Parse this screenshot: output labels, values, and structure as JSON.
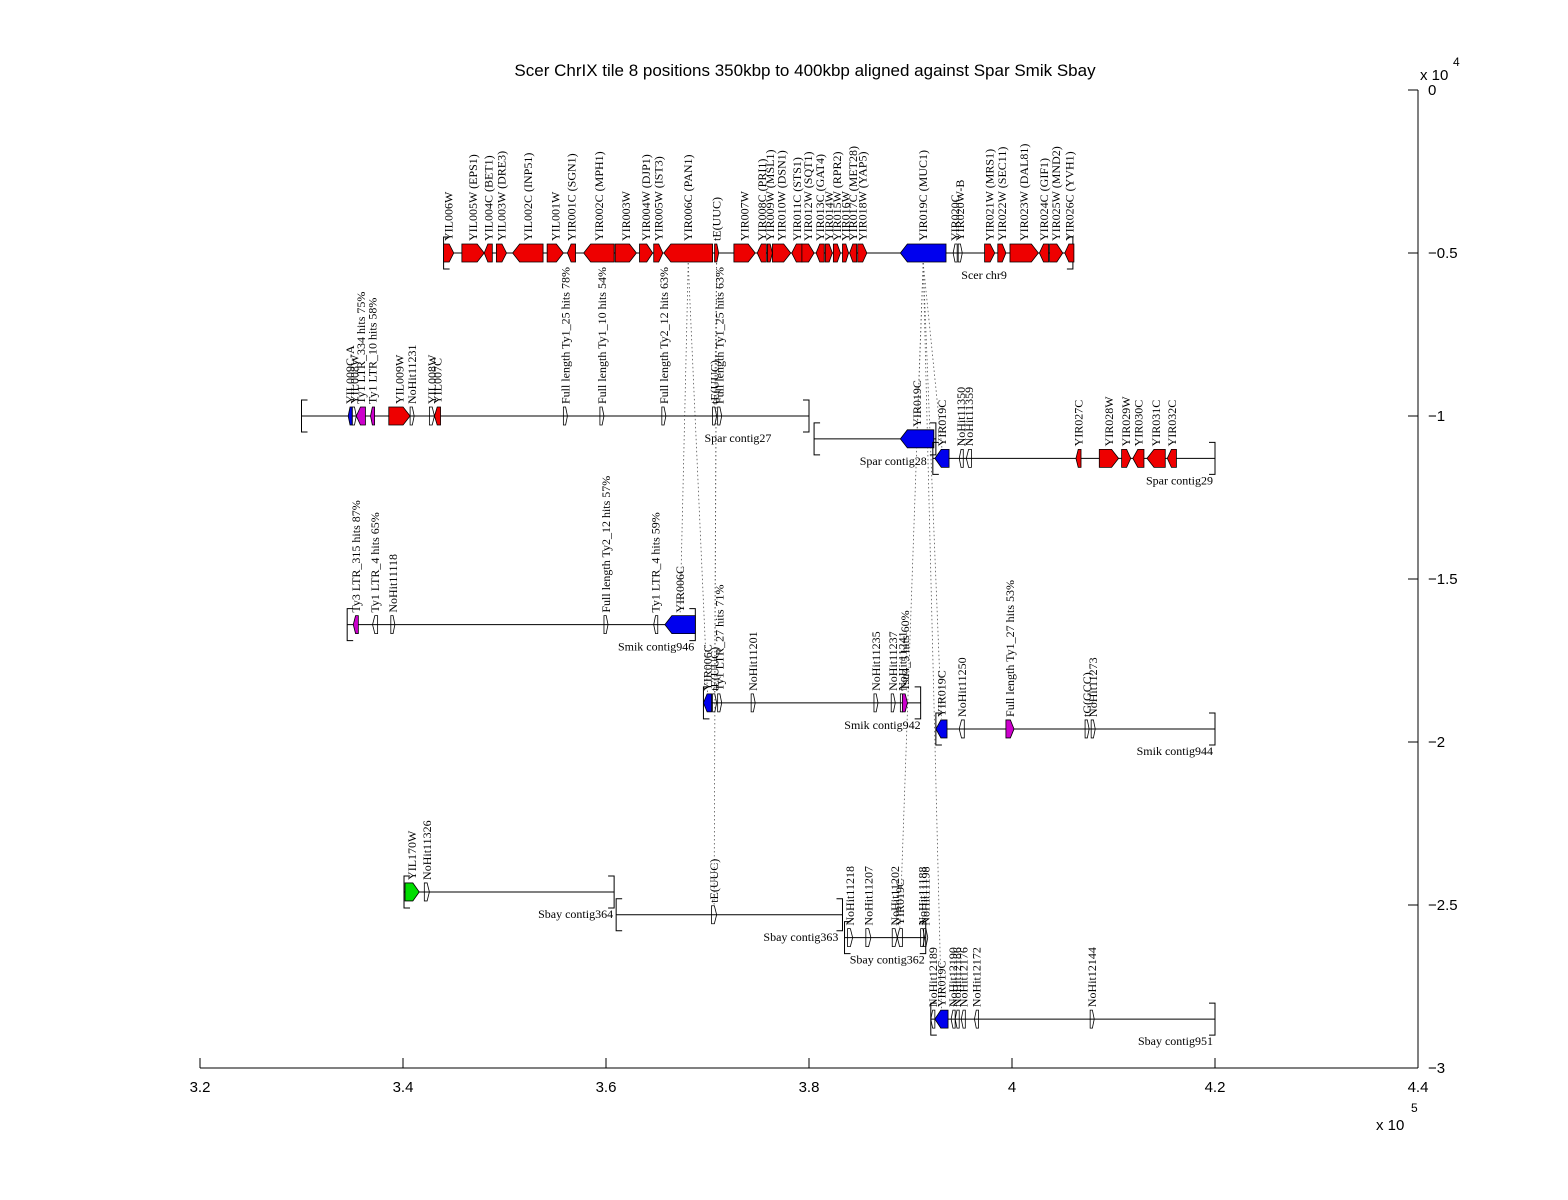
{
  "title": "Scer ChrIX tile 8 positions 350kbp to 400kbp aligned against Spar Smik Sbay",
  "colors": {
    "red": "#ee0000",
    "blue": "#0000ee",
    "magenta": "#cc00cc",
    "green": "#00dd00",
    "black": "#000000"
  },
  "x_axis": {
    "ticks": [
      3.2,
      3.4,
      3.6,
      3.8,
      4,
      4.2,
      4.4
    ],
    "tick_labels": [
      "3.2",
      "3.4",
      "3.6",
      "3.8",
      "4",
      "4.2",
      "4.4"
    ],
    "multiplier": "x 10",
    "exponent": "5",
    "range": [
      320000,
      440000
    ]
  },
  "y_axis": {
    "ticks": [
      0,
      -0.5,
      -1,
      -1.5,
      -2,
      -2.5,
      -3
    ],
    "tick_labels": [
      "0",
      "−0.5",
      "−1",
      "−1.5",
      "−2",
      "−2.5",
      "−3"
    ],
    "multiplier": "x 10",
    "exponent": "4",
    "range": [
      -30000,
      0
    ]
  },
  "chart_data": {
    "type": "genome-alignment",
    "contigs": [
      {
        "name": "Scer chr9",
        "y": -5000,
        "x_start": 344000,
        "x_end": 406000,
        "label_at": 399500,
        "genes": [
          {
            "label": "YIL006W",
            "start": 344000,
            "end": 345000,
            "strand": "+",
            "color": "red"
          },
          {
            "label": "YIL005W (EPS1)",
            "start": 345800,
            "end": 348000,
            "strand": "+",
            "color": "red"
          },
          {
            "label": "YIL004C (BET1)",
            "start": 348000,
            "end": 348800,
            "strand": "-",
            "color": "red"
          },
          {
            "label": "YIL003W (DRE3)",
            "start": 349200,
            "end": 350200,
            "strand": "+",
            "color": "red"
          },
          {
            "label": "YIL002C (INP51)",
            "start": 350800,
            "end": 353800,
            "strand": "-",
            "color": "red"
          },
          {
            "label": "YIL001W",
            "start": 354200,
            "end": 355800,
            "strand": "+",
            "color": "red"
          },
          {
            "label": "YIR001C (SGN1)",
            "start": 356200,
            "end": 357000,
            "strand": "-",
            "color": "red"
          },
          {
            "label": "YIR002C (MPH1)",
            "start": 357800,
            "end": 360800,
            "strand": "-",
            "color": "red"
          },
          {
            "label": "YIR003W",
            "start": 360900,
            "end": 363000,
            "strand": "+",
            "color": "red"
          },
          {
            "label": "YIR004W (DJP1)",
            "start": 363300,
            "end": 364600,
            "strand": "+",
            "color": "red"
          },
          {
            "label": "YIR005W (IST3)",
            "start": 364700,
            "end": 365600,
            "strand": "+",
            "color": "red"
          },
          {
            "label": "YIR006C (PAN1)",
            "start": 365700,
            "end": 370500,
            "strand": "-",
            "color": "red"
          },
          {
            "label": "tE(UUC)",
            "start": 370700,
            "end": 371100,
            "strand": "+",
            "color": "red"
          },
          {
            "label": "YIR007W",
            "start": 372600,
            "end": 374700,
            "strand": "+",
            "color": "red"
          },
          {
            "label": "YIR008C (PRI1)",
            "start": 374900,
            "end": 375800,
            "strand": "-",
            "color": "red"
          },
          {
            "label": "YIR009W (MSL1)",
            "start": 375900,
            "end": 376400,
            "strand": "+",
            "color": "red"
          },
          {
            "label": "YIR010W (DSN1)",
            "start": 376400,
            "end": 378200,
            "strand": "+",
            "color": "red"
          },
          {
            "label": "YIR011C (STS1)",
            "start": 378300,
            "end": 379300,
            "strand": "-",
            "color": "red"
          },
          {
            "label": "YIR012W (SQT1)",
            "start": 379300,
            "end": 380500,
            "strand": "+",
            "color": "red"
          },
          {
            "label": "YIR013C (GAT4)",
            "start": 380700,
            "end": 381500,
            "strand": "-",
            "color": "red"
          },
          {
            "label": "YIR014W",
            "start": 381600,
            "end": 382300,
            "strand": "+",
            "color": "red"
          },
          {
            "label": "YIR015W (RPR2)",
            "start": 382400,
            "end": 383100,
            "strand": "+",
            "color": "red"
          },
          {
            "label": "YIR016W",
            "start": 383300,
            "end": 383900,
            "strand": "+",
            "color": "red"
          },
          {
            "label": "YIR017C (MET28)",
            "start": 384000,
            "end": 384700,
            "strand": "-",
            "color": "red"
          },
          {
            "label": "YIR018W (YAP5)",
            "start": 384800,
            "end": 385700,
            "strand": "+",
            "color": "red"
          },
          {
            "label": "YIR019C (MUC1)",
            "start": 389000,
            "end": 393500,
            "strand": "-",
            "color": "blue"
          },
          {
            "label": "YIR020C",
            "start": 394200,
            "end": 394600,
            "strand": "-",
            "color": "black"
          },
          {
            "label": "YIR020W-B",
            "start": 394700,
            "end": 395100,
            "strand": "+",
            "color": "black"
          },
          {
            "label": "YIR021W (MRS1)",
            "start": 397300,
            "end": 398300,
            "strand": "+",
            "color": "red"
          },
          {
            "label": "YIR022W (SEC11)",
            "start": 398600,
            "end": 399400,
            "strand": "+",
            "color": "red"
          },
          {
            "label": "YIR023W (DAL81)",
            "start": 399800,
            "end": 402600,
            "strand": "+",
            "color": "red"
          },
          {
            "label": "YIR024C (GIF1)",
            "start": 402700,
            "end": 403600,
            "strand": "-",
            "color": "red"
          },
          {
            "label": "YIR025W (MND2)",
            "start": 403700,
            "end": 405000,
            "strand": "+",
            "color": "red"
          },
          {
            "label": "YIR026C (YVH1)",
            "start": 405200,
            "end": 406100,
            "strand": "-",
            "color": "red"
          }
        ]
      },
      {
        "name": "Spar contig27",
        "y": -10000,
        "x_start": 330000,
        "x_end": 380000,
        "label_at": 376300,
        "genes": [
          {
            "label": "YIL009C-A",
            "start": 334600,
            "end": 335000,
            "strand": "-",
            "color": "blue"
          },
          {
            "label": "YIL008W",
            "start": 335000,
            "end": 335400,
            "strand": "+",
            "color": "black"
          },
          {
            "label": "Ty1 LTR_334 hits 75%",
            "start": 335400,
            "end": 336300,
            "strand": "-",
            "color": "magenta"
          },
          {
            "label": "Ty1 LTR_10 hits 58%",
            "start": 336800,
            "end": 337200,
            "strand": "-",
            "color": "magenta"
          },
          {
            "label": "YIL009W",
            "start": 338600,
            "end": 340700,
            "strand": "+",
            "color": "red"
          },
          {
            "label": "NoHit11231",
            "start": 340700,
            "end": 341100,
            "strand": "+",
            "color": "black"
          },
          {
            "label": "YIL008W",
            "start": 342600,
            "end": 343100,
            "strand": "+",
            "color": "black"
          },
          {
            "label": "YIL007C",
            "start": 343100,
            "end": 343700,
            "strand": "-",
            "color": "red"
          },
          {
            "label": "Full length Ty1_25 hits 78%",
            "start": 355800,
            "end": 356200,
            "strand": "+",
            "color": "black"
          },
          {
            "label": "Full length Ty1_10 hits 54%",
            "start": 359400,
            "end": 359800,
            "strand": "+",
            "color": "black"
          },
          {
            "label": "Full length Ty2_12 hits 63%",
            "start": 365500,
            "end": 365900,
            "strand": "+",
            "color": "black"
          },
          {
            "label": "tE(UUC)",
            "start": 370500,
            "end": 370900,
            "strand": "+",
            "color": "black"
          },
          {
            "label": "Full length Ty1_25 hits 63%",
            "start": 371000,
            "end": 371400,
            "strand": "+",
            "color": "black"
          }
        ]
      },
      {
        "name": "Spar contig28",
        "y": -10700,
        "x_start": 380500,
        "x_end": 392500,
        "label_at": 391600,
        "genes": [
          {
            "label": "YIR019C",
            "start": 389000,
            "end": 392300,
            "strand": "-",
            "color": "blue"
          }
        ]
      },
      {
        "name": "Spar contig29",
        "y": -11300,
        "x_start": 392200,
        "x_end": 420000,
        "label_at": 419800,
        "genes": [
          {
            "label": "YIR019C",
            "start": 392400,
            "end": 393800,
            "strand": "-",
            "color": "blue"
          },
          {
            "label": "NoHit11350",
            "start": 394800,
            "end": 395200,
            "strand": "-",
            "color": "black"
          },
          {
            "label": "NoHit11359",
            "start": 395500,
            "end": 396000,
            "strand": "-",
            "color": "black"
          },
          {
            "label": "YIR027C",
            "start": 406300,
            "end": 406800,
            "strand": "-",
            "color": "red"
          },
          {
            "label": "YIR028W",
            "start": 408600,
            "end": 410500,
            "strand": "+",
            "color": "red"
          },
          {
            "label": "YIR029W",
            "start": 410800,
            "end": 411700,
            "strand": "+",
            "color": "red"
          },
          {
            "label": "YIR030C",
            "start": 411900,
            "end": 413000,
            "strand": "-",
            "color": "red"
          },
          {
            "label": "YIR031C",
            "start": 413300,
            "end": 415100,
            "strand": "-",
            "color": "red"
          },
          {
            "label": "YIR032C",
            "start": 415300,
            "end": 416200,
            "strand": "-",
            "color": "red"
          }
        ]
      },
      {
        "name": "Smik contig946",
        "y": -16400,
        "x_start": 334500,
        "x_end": 368800,
        "label_at": 368700,
        "genes": [
          {
            "label": "Ty3 LTR_315 hits 87%",
            "start": 335100,
            "end": 335600,
            "strand": "-",
            "color": "magenta"
          },
          {
            "label": "Ty1 LTR_4 hits 65%",
            "start": 337000,
            "end": 337500,
            "strand": "-",
            "color": "black"
          },
          {
            "label": "NoHit11118",
            "start": 338800,
            "end": 339200,
            "strand": "+",
            "color": "black"
          },
          {
            "label": "Full length Ty2_12 hits 57%",
            "start": 359800,
            "end": 360200,
            "strand": "+",
            "color": "black"
          },
          {
            "label": "Ty1 LTR_4 hits 59%",
            "start": 364700,
            "end": 365100,
            "strand": "-",
            "color": "black"
          },
          {
            "label": "YIR006C",
            "start": 365800,
            "end": 368800,
            "strand": "-",
            "color": "blue"
          }
        ]
      },
      {
        "name": "Smik contig942",
        "y": -18800,
        "x_start": 369600,
        "x_end": 391000,
        "label_at": 391000,
        "genes": [
          {
            "label": "YIR006C",
            "start": 369600,
            "end": 370400,
            "strand": "-",
            "color": "blue"
          },
          {
            "label": "tE(UUC)",
            "start": 370500,
            "end": 370900,
            "strand": "+",
            "color": "black"
          },
          {
            "label": "Ty1 LTR_27 hits 71%",
            "start": 371000,
            "end": 371400,
            "strand": "+",
            "color": "black"
          },
          {
            "label": "NoHit11201",
            "start": 374300,
            "end": 374700,
            "strand": "+",
            "color": "black"
          },
          {
            "label": "NoHit11235",
            "start": 386400,
            "end": 386800,
            "strand": "+",
            "color": "black"
          },
          {
            "label": "NoHit11237",
            "start": 388100,
            "end": 388500,
            "strand": "+",
            "color": "black"
          },
          {
            "label": "NoHit11241",
            "start": 389000,
            "end": 389400,
            "strand": "+",
            "color": "black"
          },
          {
            "label": "Tsu4_5 hits 60%",
            "start": 389200,
            "end": 389700,
            "strand": "+",
            "color": "magenta"
          }
        ]
      },
      {
        "name": "Smik contig944",
        "y": -19600,
        "x_start": 392500,
        "x_end": 420000,
        "label_at": 419800,
        "genes": [
          {
            "label": "YIR019C",
            "start": 392500,
            "end": 393600,
            "strand": "-",
            "color": "blue"
          },
          {
            "label": "NoHit11250",
            "start": 394800,
            "end": 395300,
            "strand": "-",
            "color": "black"
          },
          {
            "label": "Full length Ty1_27 hits 53%",
            "start": 399400,
            "end": 400200,
            "strand": "+",
            "color": "magenta"
          },
          {
            "label": "tG(GCC)",
            "start": 407200,
            "end": 407600,
            "strand": "+",
            "color": "black"
          },
          {
            "label": "NoHit11273",
            "start": 407800,
            "end": 408200,
            "strand": "+",
            "color": "black"
          }
        ]
      },
      {
        "name": "Sbay contig364",
        "y": -24600,
        "x_start": 340100,
        "x_end": 360800,
        "label_at": 360700,
        "genes": [
          {
            "label": "YIL170W",
            "start": 340200,
            "end": 341600,
            "strand": "+",
            "color": "green"
          },
          {
            "label": "NoHit11326",
            "start": 342100,
            "end": 342600,
            "strand": "+",
            "color": "black"
          }
        ]
      },
      {
        "name": "Sbay contig363",
        "y": -25300,
        "x_start": 361000,
        "x_end": 383300,
        "label_at": 382900,
        "genes": [
          {
            "label": "tE(UUC)",
            "start": 370400,
            "end": 370900,
            "strand": "+",
            "color": "black"
          }
        ]
      },
      {
        "name": "Sbay contig362",
        "y": -26000,
        "x_start": 383500,
        "x_end": 391500,
        "label_at": 391400,
        "genes": [
          {
            "label": "NoHit11218",
            "start": 383800,
            "end": 384300,
            "strand": "+",
            "color": "black"
          },
          {
            "label": "NoHit11207",
            "start": 385600,
            "end": 386100,
            "strand": "+",
            "color": "black"
          },
          {
            "label": "NoHit11202",
            "start": 388200,
            "end": 388700,
            "strand": "+",
            "color": "black"
          },
          {
            "label": "YIR019C",
            "start": 388700,
            "end": 389200,
            "strand": "-",
            "color": "black"
          },
          {
            "label": "NoHit11188",
            "start": 391000,
            "end": 391400,
            "strand": "+",
            "color": "black"
          },
          {
            "label": "NoHit11198",
            "start": 391300,
            "end": 391700,
            "strand": "+",
            "color": "black"
          }
        ]
      },
      {
        "name": "Sbay contig951",
        "y": -28500,
        "x_start": 392000,
        "x_end": 420000,
        "label_at": 419800,
        "genes": [
          {
            "label": "NoHit12189",
            "start": 392000,
            "end": 392400,
            "strand": "-",
            "color": "black"
          },
          {
            "label": "YIR019C",
            "start": 392400,
            "end": 393700,
            "strand": "-",
            "color": "blue"
          },
          {
            "label": "NoHit12190",
            "start": 394000,
            "end": 394400,
            "strand": "-",
            "color": "black"
          },
          {
            "label": "NoHit12186",
            "start": 394400,
            "end": 394800,
            "strand": "-",
            "color": "black"
          },
          {
            "label": "NoHit12176",
            "start": 395000,
            "end": 395400,
            "strand": "-",
            "color": "black"
          },
          {
            "label": "NoHit12172",
            "start": 396300,
            "end": 396700,
            "strand": "-",
            "color": "black"
          },
          {
            "label": "NoHit12144",
            "start": 407700,
            "end": 408100,
            "strand": "+",
            "color": "black"
          }
        ]
      }
    ]
  }
}
